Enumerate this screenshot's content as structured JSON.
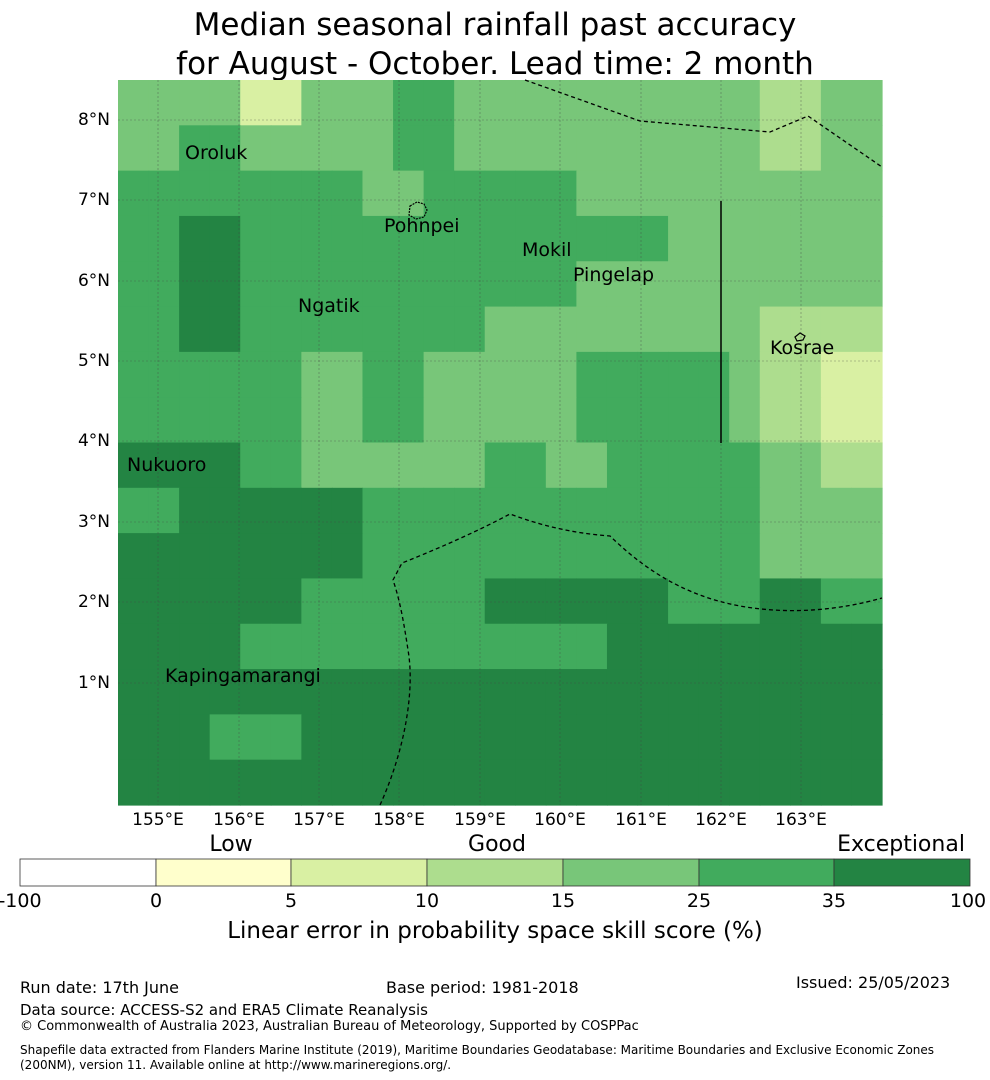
{
  "title": {
    "line1": "Median seasonal rainfall past accuracy",
    "line2": "for August - October. Lead time: 2 month"
  },
  "map": {
    "lat_labels": [
      "8°N",
      "7°N",
      "6°N",
      "5°N",
      "4°N",
      "3°N",
      "2°N",
      "1°N"
    ],
    "lon_labels": [
      "155°E",
      "156°E",
      "157°E",
      "158°E",
      "159°E",
      "160°E",
      "161°E",
      "162°E",
      "163°E"
    ],
    "places": [
      "Oroluk",
      "Pohnpei",
      "Mokil",
      "Pingelap",
      "Ngatik",
      "Kosrae",
      "Nukuoro",
      "Kapingamarangi"
    ],
    "colors": {
      "c0": "#ffffff",
      "c1": "#ffffcc",
      "c2": "#d9f0a3",
      "c3": "#addd8e",
      "c4": "#78c679",
      "c5": "#41ab5d",
      "c6": "#238443"
    },
    "grid": [
      [
        4,
        4,
        4,
        4,
        2,
        2,
        4,
        4,
        4,
        5,
        5,
        4,
        4,
        4,
        4,
        4,
        4,
        4,
        4,
        4,
        4,
        3,
        3,
        4,
        4
      ],
      [
        4,
        4,
        5,
        5,
        4,
        4,
        4,
        4,
        4,
        5,
        5,
        4,
        4,
        4,
        4,
        4,
        4,
        4,
        4,
        4,
        4,
        3,
        3,
        4,
        4
      ],
      [
        5,
        5,
        5,
        5,
        5,
        5,
        5,
        5,
        4,
        4,
        5,
        5,
        5,
        5,
        5,
        4,
        4,
        4,
        4,
        4,
        4,
        4,
        4,
        4,
        4
      ],
      [
        5,
        5,
        6,
        6,
        5,
        5,
        5,
        5,
        5,
        5,
        5,
        5,
        5,
        5,
        5,
        5,
        5,
        5,
        4,
        4,
        4,
        4,
        4,
        4,
        4
      ],
      [
        5,
        5,
        6,
        6,
        5,
        5,
        5,
        5,
        5,
        5,
        5,
        5,
        5,
        5,
        5,
        4,
        4,
        4,
        4,
        4,
        4,
        4,
        4,
        4,
        4
      ],
      [
        5,
        5,
        6,
        6,
        5,
        5,
        5,
        5,
        5,
        5,
        5,
        5,
        4,
        4,
        4,
        4,
        4,
        4,
        4,
        4,
        4,
        3,
        3,
        3,
        3
      ],
      [
        5,
        5,
        5,
        5,
        5,
        5,
        4,
        4,
        5,
        5,
        4,
        4,
        4,
        4,
        4,
        5,
        5,
        5,
        5,
        5,
        4,
        3,
        3,
        2,
        2
      ],
      [
        5,
        5,
        5,
        5,
        5,
        5,
        4,
        4,
        5,
        5,
        4,
        4,
        4,
        4,
        4,
        5,
        5,
        5,
        5,
        5,
        4,
        3,
        3,
        2,
        2
      ],
      [
        6,
        6,
        6,
        6,
        5,
        5,
        4,
        4,
        4,
        4,
        4,
        4,
        5,
        5,
        4,
        4,
        5,
        5,
        5,
        5,
        5,
        4,
        4,
        3,
        3
      ],
      [
        5,
        5,
        6,
        6,
        6,
        6,
        6,
        6,
        5,
        5,
        5,
        5,
        5,
        5,
        5,
        5,
        5,
        5,
        5,
        5,
        5,
        4,
        4,
        4,
        4
      ],
      [
        6,
        6,
        6,
        6,
        6,
        6,
        6,
        6,
        5,
        5,
        5,
        5,
        5,
        5,
        5,
        5,
        5,
        5,
        5,
        5,
        5,
        4,
        4,
        4,
        4
      ],
      [
        6,
        6,
        6,
        6,
        6,
        6,
        5,
        5,
        5,
        5,
        5,
        5,
        6,
        6,
        6,
        6,
        6,
        6,
        5,
        5,
        5,
        6,
        6,
        5,
        5
      ],
      [
        6,
        6,
        6,
        6,
        5,
        5,
        5,
        5,
        5,
        5,
        5,
        5,
        5,
        5,
        5,
        5,
        6,
        6,
        6,
        6,
        6,
        6,
        6,
        6,
        6
      ],
      [
        6,
        6,
        6,
        6,
        6,
        6,
        6,
        6,
        6,
        6,
        6,
        6,
        6,
        6,
        6,
        6,
        6,
        6,
        6,
        6,
        6,
        6,
        6,
        6,
        6
      ],
      [
        6,
        6,
        6,
        5,
        5,
        5,
        6,
        6,
        6,
        6,
        6,
        6,
        6,
        6,
        6,
        6,
        6,
        6,
        6,
        6,
        6,
        6,
        6,
        6,
        6
      ],
      [
        6,
        6,
        6,
        6,
        6,
        6,
        6,
        6,
        6,
        6,
        6,
        6,
        6,
        6,
        6,
        6,
        6,
        6,
        6,
        6,
        6,
        6,
        6,
        6,
        6
      ]
    ]
  },
  "legend": {
    "categories": [
      "Low",
      "Good",
      "Exceptional"
    ],
    "ticks": [
      "-100",
      "0",
      "5",
      "10",
      "15",
      "25",
      "35",
      "100"
    ],
    "label": "Linear error in probability space skill score (%)"
  },
  "footer": {
    "run_date": "Run date: 17th June",
    "base_period": "Base period: 1981-2018",
    "issued": "Issued: 25/05/2023",
    "data_source": "Data source: ACCESS-S2 and ERA5 Climate Reanalysis",
    "copyright": "© Commonwealth of Australia 2023, Australian Bureau of Meteorology, Supported by COSPPac",
    "shapefile": "Shapefile data extracted from Flanders Marine Institute (2019), Maritime Boundaries Geodatabase: Maritime Boundaries and Exclusive Economic Zones (200NM), version 11. Available online at http://www.marineregions.org/."
  }
}
